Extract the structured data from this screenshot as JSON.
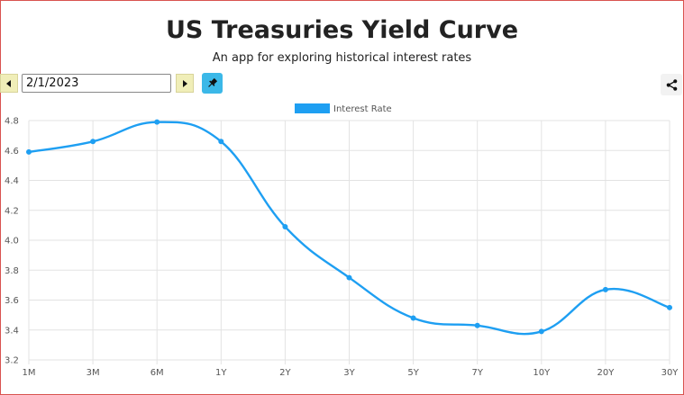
{
  "header": {
    "title": "US Treasuries Yield Curve",
    "subtitle": "An app for exploring historical interest rates"
  },
  "controls": {
    "date_value": "2/1/2023"
  },
  "icons": {
    "prev": "caret-left-icon",
    "next": "caret-right-icon",
    "pin": "pin-icon",
    "share": "share-icon"
  },
  "colors": {
    "line": "#1e9ff2",
    "nav_button": "#f0eeb8",
    "pin_button": "#3bb8e8"
  },
  "chart_data": {
    "type": "line",
    "categories": [
      "1M",
      "3M",
      "6M",
      "1Y",
      "2Y",
      "3Y",
      "5Y",
      "7Y",
      "10Y",
      "20Y",
      "30Y"
    ],
    "series": [
      {
        "name": "Interest Rate",
        "values": [
          4.59,
          4.66,
          4.79,
          4.66,
          4.09,
          3.75,
          3.48,
          3.43,
          3.39,
          3.67,
          3.55
        ]
      }
    ],
    "ylim": [
      3.2,
      4.8
    ],
    "yticks": [
      "4.8",
      "4.6",
      "4.4",
      "4.2",
      "4.0",
      "3.8",
      "3.6",
      "3.4",
      "3.2"
    ],
    "legend": "top-center",
    "grid": true
  }
}
